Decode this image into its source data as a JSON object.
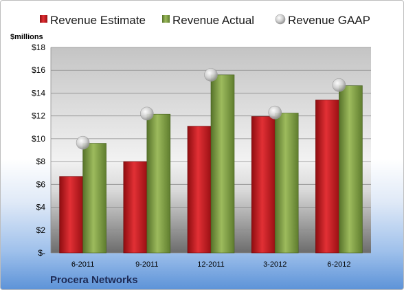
{
  "company": "Procera Networks",
  "chart_data": {
    "type": "bar",
    "title": "",
    "ylabel": "$millions",
    "xlabel": "",
    "categories": [
      "6-2011",
      "9-2011",
      "12-2011",
      "3-2012",
      "6-2012"
    ],
    "series": [
      {
        "name": "Revenue Estimate",
        "values": [
          6.7,
          8.0,
          11.1,
          11.95,
          13.4
        ],
        "color": "#cc1f24"
      },
      {
        "name": "Revenue Actual",
        "values": [
          9.6,
          12.15,
          15.6,
          12.25,
          14.65
        ],
        "color": "#7a9a3a"
      },
      {
        "name": "Revenue GAAP",
        "values": [
          9.65,
          12.2,
          15.6,
          12.3,
          14.7
        ],
        "color": "#c8c8c8",
        "kind": "marker"
      }
    ],
    "ylim": [
      0,
      18
    ],
    "yticks": [
      0,
      2,
      4,
      6,
      8,
      10,
      12,
      14,
      16,
      18
    ],
    "ytick_labels": [
      "$-",
      "$2",
      "$4",
      "$6",
      "$8",
      "$10",
      "$12",
      "$14",
      "$16",
      "$18"
    ],
    "grid": true,
    "legend": "top"
  }
}
